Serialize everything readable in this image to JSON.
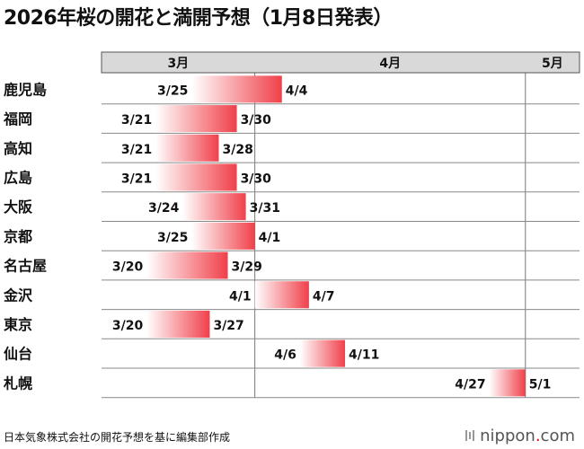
{
  "title": "2026年桜の開花と満開予想（1月8日発表）",
  "source": "日本気象株式会社の開花予想を基に編集部作成",
  "brand": {
    "name": "nippon",
    "dot": ".",
    "tld": "com"
  },
  "colors": {
    "bar_start": "#ffffff",
    "bar_end": "#f0404a",
    "header_bg": "#d9d9d9"
  },
  "chart_data": {
    "type": "gantt",
    "title": "2026年桜の開花と満開予想（1月8日発表）",
    "months": [
      {
        "label": "3月",
        "start_day": 14,
        "end_day": 31
      },
      {
        "label": "4月",
        "start_day": 31,
        "end_day": 61
      },
      {
        "label": "5月",
        "start_day": 61,
        "end_day": 67
      }
    ],
    "x_unit": "day offset from Mar 1 (Mar 1 = 0)",
    "xlim": [
      14,
      67
    ],
    "rows": [
      {
        "city": "鹿児島",
        "bloom": "3/25",
        "full": "4/4",
        "bloom_day": 24,
        "full_day": 34
      },
      {
        "city": "福岡",
        "bloom": "3/21",
        "full": "3/30",
        "bloom_day": 20,
        "full_day": 29
      },
      {
        "city": "高知",
        "bloom": "3/21",
        "full": "3/28",
        "bloom_day": 20,
        "full_day": 27
      },
      {
        "city": "広島",
        "bloom": "3/21",
        "full": "3/30",
        "bloom_day": 20,
        "full_day": 29
      },
      {
        "city": "大阪",
        "bloom": "3/24",
        "full": "3/31",
        "bloom_day": 23,
        "full_day": 30
      },
      {
        "city": "京都",
        "bloom": "3/25",
        "full": "4/1",
        "bloom_day": 24,
        "full_day": 31
      },
      {
        "city": "名古屋",
        "bloom": "3/20",
        "full": "3/29",
        "bloom_day": 19,
        "full_day": 28
      },
      {
        "city": "金沢",
        "bloom": "4/1",
        "full": "4/7",
        "bloom_day": 31,
        "full_day": 37
      },
      {
        "city": "東京",
        "bloom": "3/20",
        "full": "3/27",
        "bloom_day": 19,
        "full_day": 26
      },
      {
        "city": "仙台",
        "bloom": "4/6",
        "full": "4/11",
        "bloom_day": 36,
        "full_day": 41
      },
      {
        "city": "札幌",
        "bloom": "4/27",
        "full": "5/1",
        "bloom_day": 57,
        "full_day": 61
      }
    ]
  }
}
